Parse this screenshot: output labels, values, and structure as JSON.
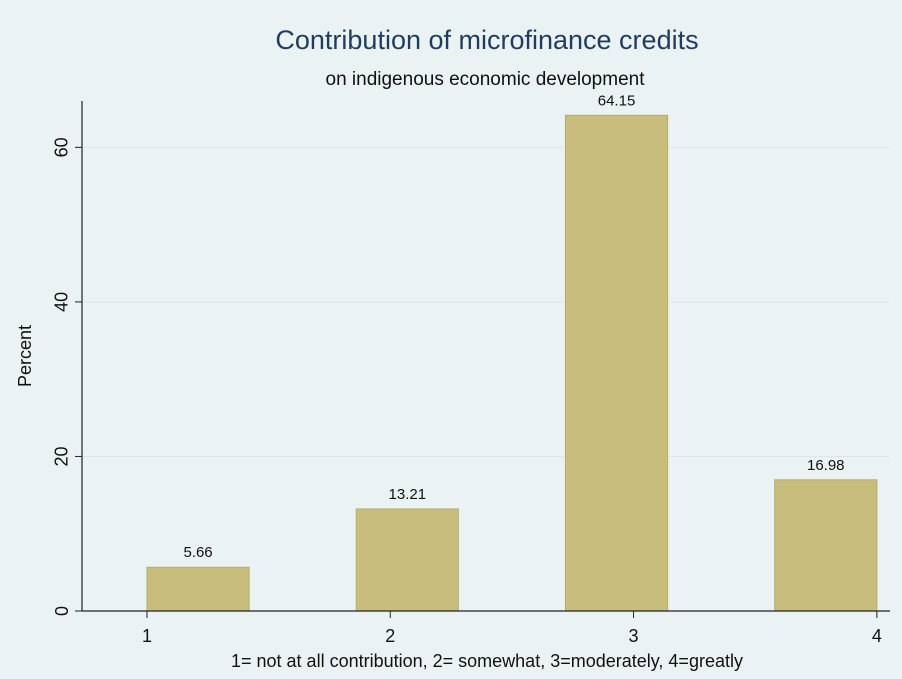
{
  "chart_data": {
    "type": "bar",
    "title": "Contribution of microfinance credits",
    "subtitle": "on indigenous economic development",
    "x_label": "1= not at all contribution, 2= somewhat, 3=moderately, 4=greatly",
    "y_label": "Percent",
    "x": [
      1.21,
      2.07,
      2.93,
      3.79
    ],
    "values": [
      5.66,
      13.21,
      64.15,
      16.98
    ],
    "color": "#c9bd7d",
    "xlim": [
      0.733,
      4.054
    ],
    "xticks": [
      1,
      2,
      3,
      4
    ],
    "ylim": [
      0,
      66
    ],
    "yticks": [
      0,
      20,
      40,
      60
    ],
    "grid": true
  }
}
